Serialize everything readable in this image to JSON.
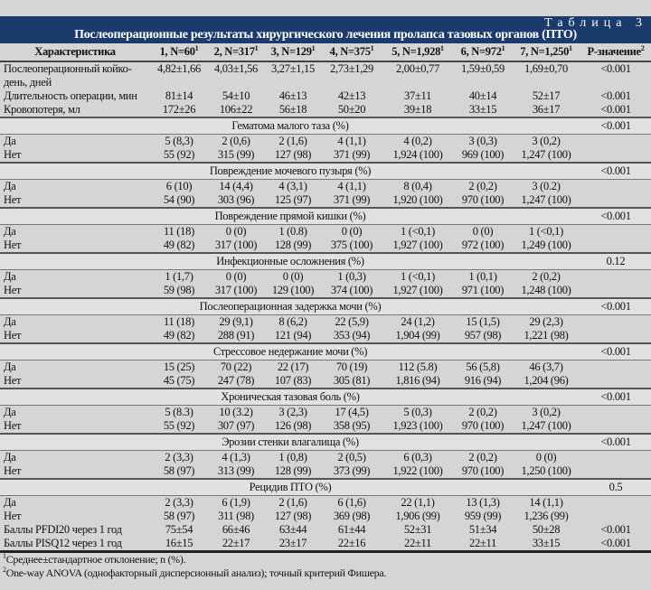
{
  "header": {
    "table_label": "Таблица 3",
    "title": "Послеоперационные результаты хирургического лечения пролапса тазовых органов (ПТО)"
  },
  "columns": [
    "Характеристика",
    "1, N=60",
    "2, N=317",
    "3, N=129",
    "4, N=375",
    "5, N=1,928",
    "6, N=972",
    "7, N=1,250",
    "P-значение"
  ],
  "column_superscripts": [
    "",
    "1",
    "1",
    "1",
    "1",
    "1",
    "1",
    "1",
    "2"
  ],
  "rows": [
    {
      "type": "double",
      "label": "Послеоперационный койко-день, дней",
      "values": [
        "4,82±1,66",
        "4,03±1,56",
        "3,27±1,15",
        "2,73±1,29",
        "2,00±0,77",
        "1,59±0,59",
        "1,69±0,70"
      ],
      "p": "<0.001"
    },
    {
      "type": "data",
      "label": "Длительность операции, мин",
      "values": [
        "81±14",
        "54±10",
        "46±13",
        "42±13",
        "37±11",
        "40±14",
        "52±17"
      ],
      "p": "<0.001"
    },
    {
      "type": "data",
      "label": "Кровопотеря, мл",
      "values": [
        "172±26",
        "106±22",
        "56±18",
        "50±20",
        "39±18",
        "33±15",
        "36±17"
      ],
      "p": "<0.001"
    },
    {
      "type": "section",
      "label": "Гематома малого таза (%)",
      "p": "<0.001"
    },
    {
      "type": "data",
      "label": "Да",
      "values": [
        "5 (8,3)",
        "2 (0,6)",
        "2 (1,6)",
        "4 (1,1)",
        "4 (0,2)",
        "3 (0,3)",
        "3 (0,2)"
      ],
      "p": ""
    },
    {
      "type": "data",
      "label": "Нет",
      "values": [
        "55 (92)",
        "315 (99)",
        "127 (98)",
        "371 (99)",
        "1,924 (100)",
        "969 (100)",
        "1,247 (100)"
      ],
      "p": ""
    },
    {
      "type": "section",
      "label": "Повреждение мочевого пузыря (%)",
      "p": "<0.001"
    },
    {
      "type": "data",
      "label": "Да",
      "values": [
        "6 (10)",
        "14 (4,4)",
        "4 (3,1)",
        "4 (1,1)",
        "8 (0,4)",
        "2 (0,2)",
        "3 (0.2)"
      ],
      "p": ""
    },
    {
      "type": "data",
      "label": "Нет",
      "values": [
        "54 (90)",
        "303 (96)",
        "125 (97)",
        "371 (99)",
        "1,920 (100)",
        "970 (100)",
        "1,247 (100)"
      ],
      "p": ""
    },
    {
      "type": "section",
      "label": "Повреждение прямой кишки (%)",
      "p": "<0.001"
    },
    {
      "type": "data",
      "label": "Да",
      "values": [
        "11 (18)",
        "0 (0)",
        "1 (0.8)",
        "0 (0)",
        "1 (<0,1)",
        "0 (0)",
        "1 (<0,1)"
      ],
      "p": ""
    },
    {
      "type": "data",
      "label": "Нет",
      "values": [
        "49 (82)",
        "317 (100)",
        "128 (99)",
        "375 (100)",
        "1,927 (100)",
        "972 (100)",
        "1,249 (100)"
      ],
      "p": ""
    },
    {
      "type": "section",
      "label": "Инфекционные осложнения (%)",
      "p": "0.12"
    },
    {
      "type": "data",
      "label": "Да",
      "values": [
        "1 (1,7)",
        "0 (0)",
        "0 (0)",
        "1 (0,3)",
        "1 (<0,1)",
        "1 (0,1)",
        "2 (0,2)"
      ],
      "p": ""
    },
    {
      "type": "data",
      "label": "Нет",
      "values": [
        "59 (98)",
        "317 (100)",
        "129 (100)",
        "374 (100)",
        "1,927 (100)",
        "971 (100)",
        "1,248 (100)"
      ],
      "p": ""
    },
    {
      "type": "section",
      "label": "Послеоперационная задержка мочи (%)",
      "p": "<0.001"
    },
    {
      "type": "data",
      "label": "Да",
      "values": [
        "11 (18)",
        "29 (9,1)",
        "8 (6,2)",
        "22 (5,9)",
        "24 (1,2)",
        "15 (1,5)",
        "29 (2,3)"
      ],
      "p": ""
    },
    {
      "type": "data",
      "label": "Нет",
      "values": [
        "49 (82)",
        "288 (91)",
        "121 (94)",
        "353 (94)",
        "1,904 (99)",
        "957 (98)",
        "1,221 (98)"
      ],
      "p": ""
    },
    {
      "type": "section",
      "label": "Стрессовое недержание мочи (%)",
      "p": "<0.001"
    },
    {
      "type": "data",
      "label": "Да",
      "values": [
        "15 (25)",
        "70 (22)",
        "22 (17)",
        "70 (19)",
        "112 (5.8)",
        "56 (5,8)",
        "46 (3,7)"
      ],
      "p": ""
    },
    {
      "type": "data",
      "label": "Нет",
      "values": [
        "45 (75)",
        "247 (78)",
        "107 (83)",
        "305 (81)",
        "1,816 (94)",
        "916 (94)",
        "1,204 (96)"
      ],
      "p": ""
    },
    {
      "type": "section",
      "label": "Хроническая тазовая боль (%)",
      "p": "<0.001"
    },
    {
      "type": "data",
      "label": "Да",
      "values": [
        "5 (8.3)",
        "10 (3.2)",
        "3 (2,3)",
        "17 (4,5)",
        "5 (0,3)",
        "2 (0,2)",
        "3 (0,2)"
      ],
      "p": ""
    },
    {
      "type": "data",
      "label": "Нет",
      "values": [
        "55 (92)",
        "307 (97)",
        "126 (98)",
        "358 (95)",
        "1,923 (100)",
        "970 (100)",
        "1,247 (100)"
      ],
      "p": ""
    },
    {
      "type": "section",
      "label": "Эрозии стенки влагалища (%)",
      "p": "<0.001"
    },
    {
      "type": "data",
      "label": "Да",
      "values": [
        "2 (3,3)",
        "4 (1,3)",
        "1 (0,8)",
        "2 (0,5)",
        "6 (0,3)",
        "2 (0,2)",
        "0 (0)"
      ],
      "p": ""
    },
    {
      "type": "data",
      "label": "Нет",
      "values": [
        "58 (97)",
        "313 (99)",
        "128 (99)",
        "373 (99)",
        "1,922 (100)",
        "970 (100)",
        "1,250 (100)"
      ],
      "p": ""
    },
    {
      "type": "section",
      "label": "Рецидив ПТО (%)",
      "p": "0.5"
    },
    {
      "type": "data",
      "label": "Да",
      "values": [
        "2 (3,3)",
        "6 (1,9)",
        "2 (1,6)",
        "6 (1,6)",
        "22 (1,1)",
        "13 (1,3)",
        "14 (1,1)"
      ],
      "p": ""
    },
    {
      "type": "data",
      "label": "Нет",
      "values": [
        "58 (97)",
        "311 (98)",
        "127 (98)",
        "369 (98)",
        "1,906 (99)",
        "959 (99)",
        "1,236 (99)"
      ],
      "p": ""
    },
    {
      "type": "data",
      "label": "Баллы PFDI20 через 1 год",
      "values": [
        "75±54",
        "66±46",
        "63±44",
        "61±44",
        "52±31",
        "51±34",
        "50±28"
      ],
      "p": "<0.001"
    },
    {
      "type": "last",
      "label": "Баллы PISQ12 через 1 год",
      "values": [
        "16±15",
        "22±17",
        "23±17",
        "22±16",
        "22±11",
        "22±11",
        "33±15"
      ],
      "p": "<0.001"
    }
  ],
  "footnotes": [
    {
      "mark": "1",
      "text": "Среднее±стандартное отклонение; n (%)."
    },
    {
      "mark": "2",
      "text": "One-way ANOVA (однофакторный дисперсионный анализ); точный критерий Фишера."
    }
  ]
}
